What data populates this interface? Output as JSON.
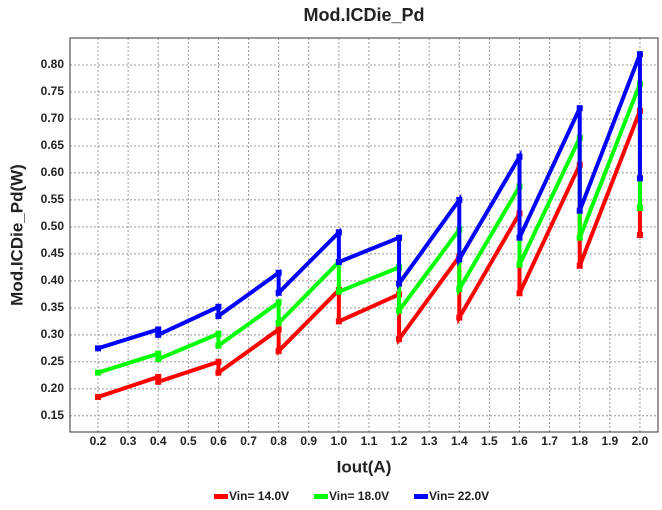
{
  "chart_data": {
    "type": "line",
    "title": "Mod.ICDie_Pd",
    "x_label": "Iout(A)",
    "y_label": "Mod.ICDie_Pd(W)",
    "x": [
      0.2,
      0.4,
      0.4,
      0.6,
      0.6,
      0.8,
      0.8,
      1.0,
      1.0,
      1.2,
      1.2,
      1.4,
      1.4,
      1.6,
      1.6,
      1.8,
      1.8,
      2.0,
      2.0
    ],
    "series": [
      {
        "name": "Vin= 14.0V",
        "color": "#ff0000",
        "values": [
          0.185,
          0.222,
          0.213,
          0.25,
          0.23,
          0.31,
          0.27,
          0.383,
          0.325,
          0.375,
          0.292,
          0.445,
          0.332,
          0.525,
          0.377,
          0.615,
          0.428,
          0.715,
          0.485
        ]
      },
      {
        "name": "Vin= 18.0V",
        "color": "#00ff00",
        "values": [
          0.23,
          0.265,
          0.255,
          0.302,
          0.28,
          0.36,
          0.322,
          0.435,
          0.38,
          0.425,
          0.345,
          0.495,
          0.385,
          0.575,
          0.43,
          0.665,
          0.48,
          0.765,
          0.535
        ]
      },
      {
        "name": "Vin= 22.0V",
        "color": "#0000ff",
        "values": [
          0.275,
          0.31,
          0.3,
          0.352,
          0.335,
          0.415,
          0.378,
          0.49,
          0.435,
          0.48,
          0.395,
          0.55,
          0.44,
          0.63,
          0.48,
          0.72,
          0.53,
          0.82,
          0.59
        ]
      }
    ],
    "xlim": [
      0.107,
      2.06
    ],
    "ylim": [
      0.12,
      0.85
    ],
    "xticks": [
      0.2,
      0.3,
      0.4,
      0.5,
      0.6,
      0.7,
      0.8,
      0.9,
      {
        "value": 1,
        "label": "1.0"
      },
      1.1,
      1.2,
      1.3,
      1.4,
      1.5,
      1.6,
      1.7,
      1.8,
      1.9,
      {
        "value": 2,
        "label": "2.0"
      }
    ],
    "yticks": [
      0.15,
      {
        "value": 0.2,
        "label": "0.20"
      },
      0.25,
      {
        "value": 0.3,
        "label": "0.30"
      },
      0.35,
      {
        "value": 0.4,
        "label": "0.40"
      },
      0.45,
      {
        "value": 0.5,
        "label": "0.50"
      },
      0.55,
      {
        "value": 0.6,
        "label": "0.60"
      },
      0.65,
      {
        "value": 0.7,
        "label": "0.70"
      },
      0.75,
      {
        "value": 0.8,
        "label": "0.80"
      }
    ],
    "grid": true,
    "legend": "bottom"
  }
}
